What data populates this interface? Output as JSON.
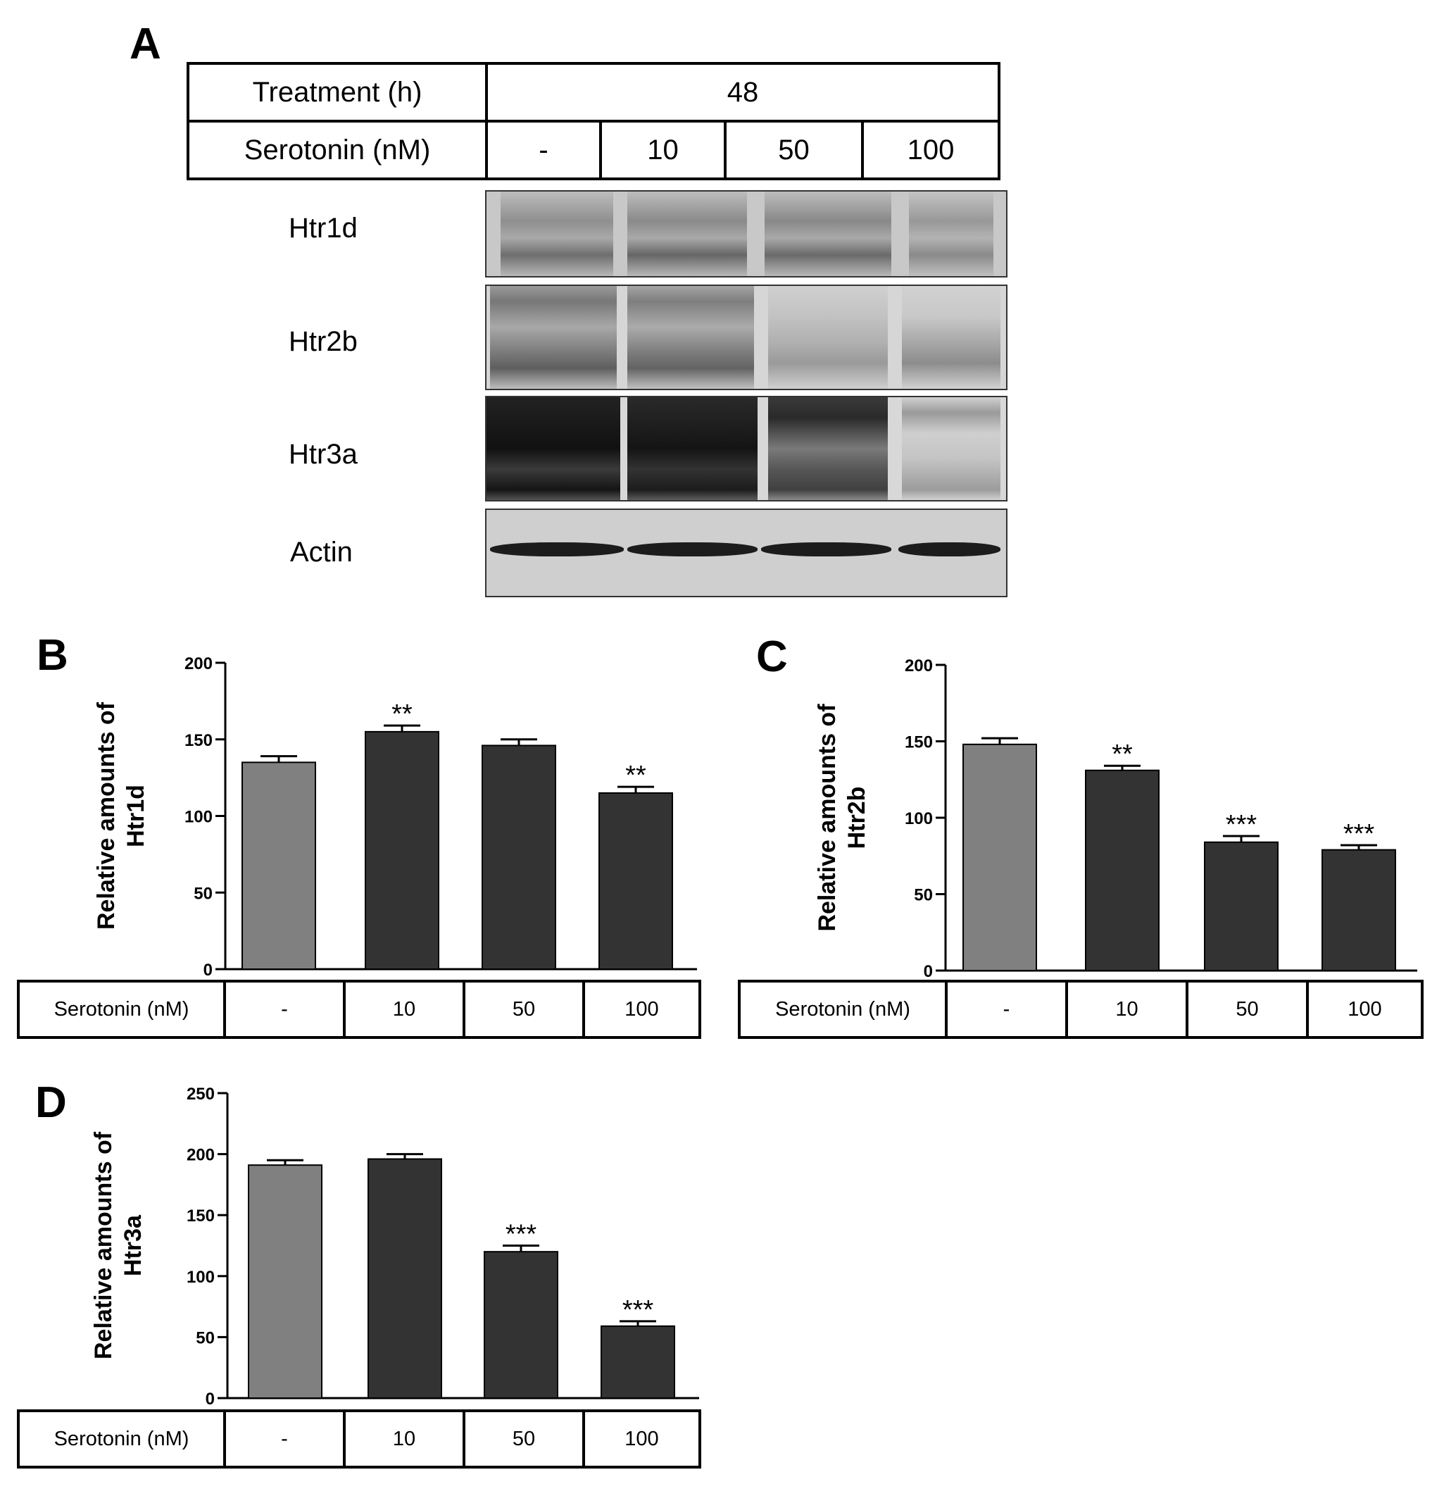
{
  "panels": {
    "a": "A",
    "b": "B",
    "c": "C",
    "d": "D"
  },
  "treatment_table": {
    "treatment_label": "Treatment (h)",
    "treatment_value": "48",
    "serotonin_label": "Serotonin (nM)",
    "doses": [
      "-",
      "10",
      "50",
      "100"
    ]
  },
  "blots": [
    {
      "label": "Htr1d"
    },
    {
      "label": "Htr2b"
    },
    {
      "label": "Htr3a"
    },
    {
      "label": "Actin"
    }
  ],
  "bottom_tables": {
    "b": {
      "label": "Serotonin (nM)",
      "doses": [
        "-",
        "10",
        "50",
        "100"
      ]
    },
    "c": {
      "label": "Serotonin (nM)",
      "doses": [
        "-",
        "10",
        "50",
        "100"
      ]
    },
    "d": {
      "label": "Serotonin (nM)",
      "doses": [
        "-",
        "10",
        "50",
        "100"
      ]
    }
  },
  "colors": {
    "control_bar": "#808080",
    "treated_bar": "#333333",
    "axis": "#000000"
  },
  "chart_data": [
    {
      "type": "bar",
      "panel": "B",
      "ylabel_lines": [
        "Relative amounts of",
        "Htr1d"
      ],
      "categories": [
        "-",
        "10",
        "50",
        "100"
      ],
      "values": [
        135,
        155,
        146,
        115
      ],
      "errors": [
        4,
        4,
        4,
        4
      ],
      "significance": [
        "",
        "**",
        "",
        "**"
      ],
      "ylim": [
        0,
        200
      ],
      "yticks": [
        0,
        50,
        100,
        150,
        200
      ]
    },
    {
      "type": "bar",
      "panel": "C",
      "ylabel_lines": [
        "Relative amounts of",
        "Htr2b"
      ],
      "categories": [
        "-",
        "10",
        "50",
        "100"
      ],
      "values": [
        148,
        131,
        84,
        79
      ],
      "errors": [
        4,
        3,
        4,
        3
      ],
      "significance": [
        "",
        "**",
        "***",
        "***"
      ],
      "ylim": [
        0,
        200
      ],
      "yticks": [
        0,
        50,
        100,
        150,
        200
      ]
    },
    {
      "type": "bar",
      "panel": "D",
      "ylabel_lines": [
        "Relative amounts of",
        "Htr3a"
      ],
      "categories": [
        "-",
        "10",
        "50",
        "100"
      ],
      "values": [
        191,
        196,
        120,
        59
      ],
      "errors": [
        4,
        4,
        5,
        4
      ],
      "significance": [
        "",
        "",
        "***",
        "***"
      ],
      "ylim": [
        0,
        250
      ],
      "yticks": [
        0,
        50,
        100,
        150,
        200,
        250
      ]
    }
  ]
}
